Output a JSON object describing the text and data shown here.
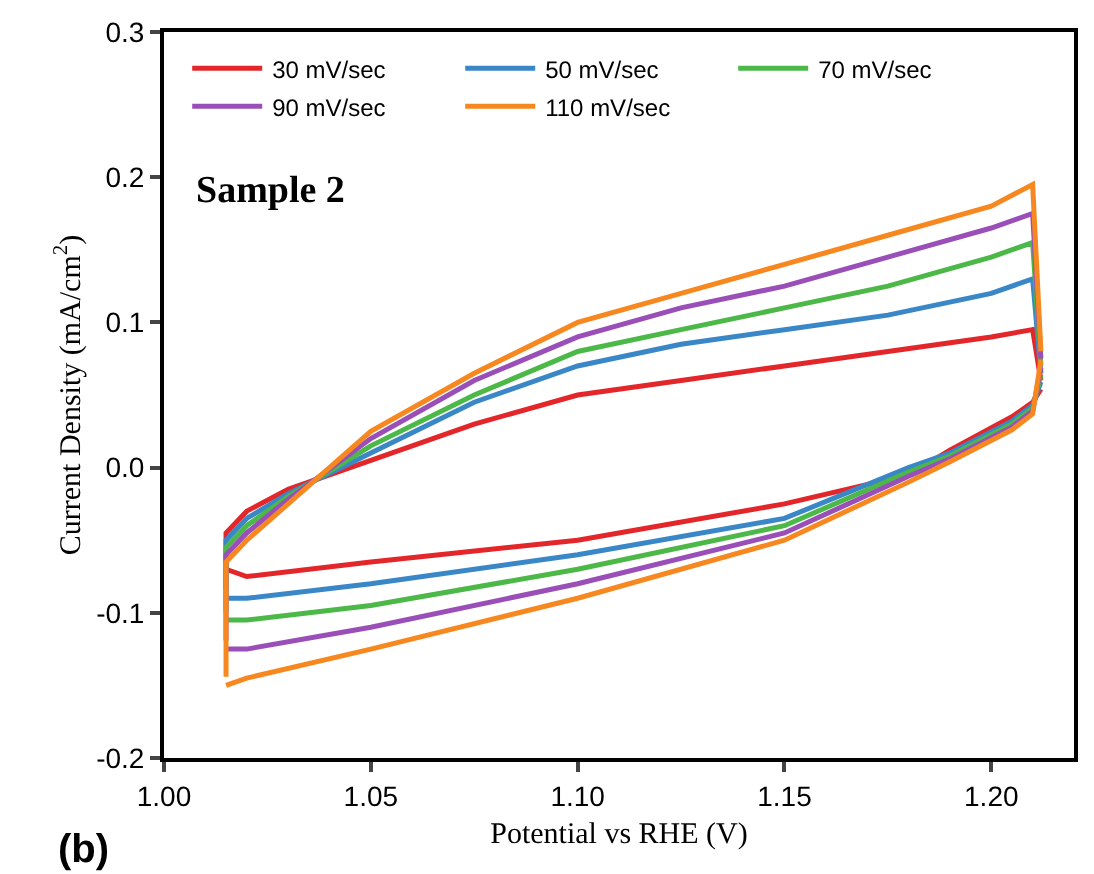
{
  "chart_data": {
    "type": "line",
    "xlabel": "Potential vs RHE (V)",
    "ylabel": "Current Density (mA/cm$^{2}$)",
    "annotations": [
      "Sample 2",
      "(b)"
    ],
    "xlim": [
      1.0,
      1.22
    ],
    "ylim": [
      -0.2,
      0.3
    ],
    "xticks": [
      {
        "value": 1.0,
        "label": "1.00"
      },
      1.05,
      {
        "value": 1.1,
        "label": "1.10"
      },
      1.15,
      {
        "value": 1.2,
        "label": "1.20"
      }
    ],
    "yticks": [
      -0.2,
      -0.1,
      {
        "value": 0,
        "label": "0.0"
      },
      0.1,
      0.2,
      0.3
    ],
    "legend": "top",
    "marker": "none",
    "line_style": "solid",
    "series": [
      {
        "name": "30 mV/sec",
        "color": "#e3262a",
        "x": [
          1.015,
          1.015,
          1.02,
          1.03,
          1.05,
          1.075,
          1.1,
          1.125,
          1.15,
          1.175,
          1.2,
          1.21,
          1.212
        ],
        "values": [
          -0.064,
          -0.045,
          -0.03,
          -0.015,
          0.005,
          0.03,
          0.05,
          0.06,
          0.07,
          0.08,
          0.09,
          0.095,
          0.06
        ]
      },
      {
        "color": "#e3262a",
        "x": [
          1.212,
          1.21,
          1.205,
          1.19,
          1.18,
          1.15,
          1.1,
          1.05,
          1.02,
          1.015
        ],
        "values": [
          0.054,
          0.045,
          0.035,
          0.012,
          -0.005,
          -0.025,
          -0.05,
          -0.065,
          -0.075,
          -0.07
        ]
      },
      {
        "name": "50 mV/sec",
        "color": "#3a87c8",
        "x": [
          1.015,
          1.015,
          1.02,
          1.03,
          1.05,
          1.075,
          1.1,
          1.125,
          1.15,
          1.175,
          1.2,
          1.21,
          1.212
        ],
        "values": [
          -0.084,
          -0.05,
          -0.035,
          -0.018,
          0.01,
          0.045,
          0.07,
          0.085,
          0.095,
          0.105,
          0.12,
          0.13,
          0.065
        ]
      },
      {
        "color": "#3a87c8",
        "x": [
          1.212,
          1.21,
          1.205,
          1.19,
          1.18,
          1.15,
          1.1,
          1.05,
          1.02,
          1.015
        ],
        "values": [
          0.059,
          0.043,
          0.032,
          0.01,
          0.0,
          -0.035,
          -0.06,
          -0.08,
          -0.09,
          -0.09
        ]
      },
      {
        "name": "70 mV/sec",
        "color": "#4cb848",
        "x": [
          1.015,
          1.015,
          1.02,
          1.03,
          1.05,
          1.075,
          1.1,
          1.125,
          1.15,
          1.175,
          1.2,
          1.21,
          1.212
        ],
        "values": [
          -0.099,
          -0.055,
          -0.04,
          -0.02,
          0.015,
          0.05,
          0.08,
          0.095,
          0.11,
          0.125,
          0.145,
          0.155,
          0.07
        ]
      },
      {
        "color": "#4cb848",
        "x": [
          1.212,
          1.21,
          1.205,
          1.19,
          1.18,
          1.15,
          1.1,
          1.05,
          1.02,
          1.015
        ],
        "values": [
          0.064,
          0.041,
          0.03,
          0.008,
          -0.003,
          -0.04,
          -0.07,
          -0.095,
          -0.105,
          -0.105
        ]
      },
      {
        "name": "90 mV/sec",
        "color": "#9a4fb8",
        "x": [
          1.015,
          1.015,
          1.02,
          1.03,
          1.05,
          1.075,
          1.1,
          1.125,
          1.15,
          1.175,
          1.2,
          1.21,
          1.212
        ],
        "values": [
          -0.119,
          -0.06,
          -0.045,
          -0.022,
          0.02,
          0.06,
          0.09,
          0.11,
          0.125,
          0.145,
          0.165,
          0.175,
          0.075
        ]
      },
      {
        "color": "#9a4fb8",
        "x": [
          1.212,
          1.21,
          1.205,
          1.19,
          1.18,
          1.15,
          1.1,
          1.05,
          1.02,
          1.015
        ],
        "values": [
          0.069,
          0.039,
          0.028,
          0.006,
          -0.006,
          -0.045,
          -0.08,
          -0.11,
          -0.125,
          -0.125
        ]
      },
      {
        "name": "110 mV/sec",
        "color": "#f7881f",
        "x": [
          1.015,
          1.015,
          1.02,
          1.03,
          1.05,
          1.075,
          1.1,
          1.125,
          1.15,
          1.175,
          1.2,
          1.21,
          1.212
        ],
        "values": [
          -0.144,
          -0.065,
          -0.05,
          -0.025,
          0.025,
          0.065,
          0.1,
          0.12,
          0.14,
          0.16,
          0.18,
          0.195,
          0.08
        ]
      },
      {
        "color": "#f7881f",
        "x": [
          1.212,
          1.21,
          1.205,
          1.19,
          1.18,
          1.15,
          1.1,
          1.05,
          1.02,
          1.015
        ],
        "values": [
          0.074,
          0.037,
          0.026,
          0.004,
          -0.01,
          -0.05,
          -0.09,
          -0.125,
          -0.145,
          -0.15
        ]
      }
    ]
  }
}
